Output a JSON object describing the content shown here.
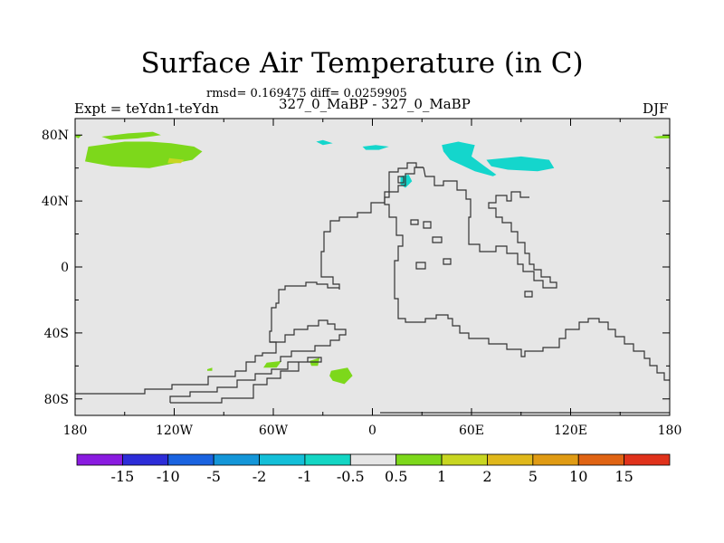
{
  "title": "Surface Air Temperature (in C)",
  "stats": "rmsd= 0.169475 diff= 0.0259905",
  "left_label": "Expt = teYdn1-teYdn",
  "center_label": "327_0_MaBP - 327_0_MaBP",
  "right_label": "DJF",
  "map": {
    "background_color": "#e6e6e6",
    "x_ticks": [
      {
        "lon": -180,
        "label": "180"
      },
      {
        "lon": -120,
        "label": "120W"
      },
      {
        "lon": -60,
        "label": "60W"
      },
      {
        "lon": 0,
        "label": "0"
      },
      {
        "lon": 60,
        "label": "60E"
      },
      {
        "lon": 120,
        "label": "120E"
      },
      {
        "lon": 180,
        "label": "180"
      }
    ],
    "y_ticks": [
      {
        "lat": 80,
        "label": "80N"
      },
      {
        "lat": 40,
        "label": "40N"
      },
      {
        "lat": 0,
        "label": "0"
      },
      {
        "lat": -40,
        "label": "40S"
      },
      {
        "lat": -80,
        "label": "80S"
      }
    ],
    "coast_color": "#333333",
    "anomaly_regions": [
      {
        "level": "0.5 to 1",
        "color": "#7dd81b",
        "points": [
          [
            -172,
            73
          ],
          [
            -150,
            76
          ],
          [
            -135,
            76
          ],
          [
            -122,
            75
          ],
          [
            -108,
            73
          ],
          [
            -103,
            70
          ],
          [
            -109,
            65
          ],
          [
            -135,
            60
          ],
          [
            -158,
            61
          ],
          [
            -174,
            64
          ]
        ]
      },
      {
        "level": "1 to 2",
        "color": "#c8d621",
        "points": [
          [
            -123,
            66
          ],
          [
            -114,
            65
          ],
          [
            -116,
            63
          ],
          [
            -124,
            63
          ]
        ]
      },
      {
        "level": "0.5 to 1",
        "color": "#7dd81b",
        "points": [
          [
            -164,
            79
          ],
          [
            -148,
            81
          ],
          [
            -133,
            82
          ],
          [
            -128,
            80
          ],
          [
            -142,
            78
          ],
          [
            -158,
            77
          ]
        ]
      },
      {
        "level": "0.5 to 1",
        "color": "#7dd81b",
        "points": [
          [
            -180,
            79
          ],
          [
            -178,
            78
          ],
          [
            -176,
            80
          ],
          [
            -179,
            80
          ]
        ]
      },
      {
        "level": "0.5 to 1",
        "color": "#7dd81b",
        "points": [
          [
            170,
            79
          ],
          [
            180,
            80
          ],
          [
            180,
            78
          ],
          [
            172,
            78
          ]
        ]
      },
      {
        "level": "-1 to -0.5",
        "color": "#14d6cc",
        "points": [
          [
            42,
            74
          ],
          [
            52,
            76
          ],
          [
            62,
            74
          ],
          [
            60,
            67
          ],
          [
            68,
            61
          ],
          [
            75,
            56
          ],
          [
            73,
            55
          ],
          [
            62,
            58
          ],
          [
            47,
            65
          ],
          [
            43,
            70
          ]
        ]
      },
      {
        "level": "-1 to -0.5",
        "color": "#14d6cc",
        "points": [
          [
            69,
            65
          ],
          [
            90,
            67
          ],
          [
            107,
            65
          ],
          [
            110,
            60
          ],
          [
            100,
            58
          ],
          [
            82,
            59
          ],
          [
            72,
            61
          ]
        ]
      },
      {
        "level": "-1 to -0.5",
        "color": "#14d6cc",
        "points": [
          [
            -34,
            76
          ],
          [
            -30,
            77
          ],
          [
            -24,
            75
          ],
          [
            -30,
            74
          ]
        ]
      },
      {
        "level": "-1 to -0.5",
        "color": "#14d6cc",
        "points": [
          [
            -6,
            73
          ],
          [
            2,
            74
          ],
          [
            10,
            73
          ],
          [
            4,
            71
          ],
          [
            -4,
            71
          ]
        ]
      },
      {
        "level": "-1 to -0.5",
        "color": "#14d6cc",
        "points": [
          [
            17,
            55
          ],
          [
            22,
            56
          ],
          [
            24,
            52
          ],
          [
            20,
            48
          ],
          [
            17,
            50
          ]
        ]
      },
      {
        "level": "0.5 to 1",
        "color": "#7dd81b",
        "points": [
          [
            -25,
            -63
          ],
          [
            -15,
            -61
          ],
          [
            -12,
            -66
          ],
          [
            -17,
            -71
          ],
          [
            -24,
            -69
          ],
          [
            -26,
            -66
          ]
        ]
      },
      {
        "level": "0.5 to 1",
        "color": "#7dd81b",
        "points": [
          [
            -64,
            -58
          ],
          [
            -55,
            -57
          ],
          [
            -58,
            -61
          ],
          [
            -66,
            -61
          ]
        ]
      },
      {
        "level": "0.5 to 1",
        "color": "#7dd81b",
        "points": [
          [
            -38,
            -57
          ],
          [
            -32,
            -55
          ],
          [
            -33,
            -60
          ],
          [
            -37,
            -60
          ]
        ]
      },
      {
        "level": "0.5 to 1",
        "color": "#7dd81b",
        "points": [
          [
            -100,
            -62
          ],
          [
            -97,
            -61
          ],
          [
            -97,
            -63
          ],
          [
            -100,
            -63
          ]
        ]
      }
    ]
  },
  "colorbar": {
    "colors": [
      "#8a1be0",
      "#2d2dd8",
      "#1a63e0",
      "#1496d8",
      "#14bfd8",
      "#14d6c4",
      "#e6e6e6",
      "#7dd81b",
      "#c8d621",
      "#e0b81b",
      "#e09b14",
      "#e06414",
      "#e0321b"
    ],
    "labels": [
      "-15",
      "-10",
      "-5",
      "-2",
      "-1",
      "-0.5",
      "0.5",
      "1",
      "2",
      "5",
      "10",
      "15"
    ]
  }
}
